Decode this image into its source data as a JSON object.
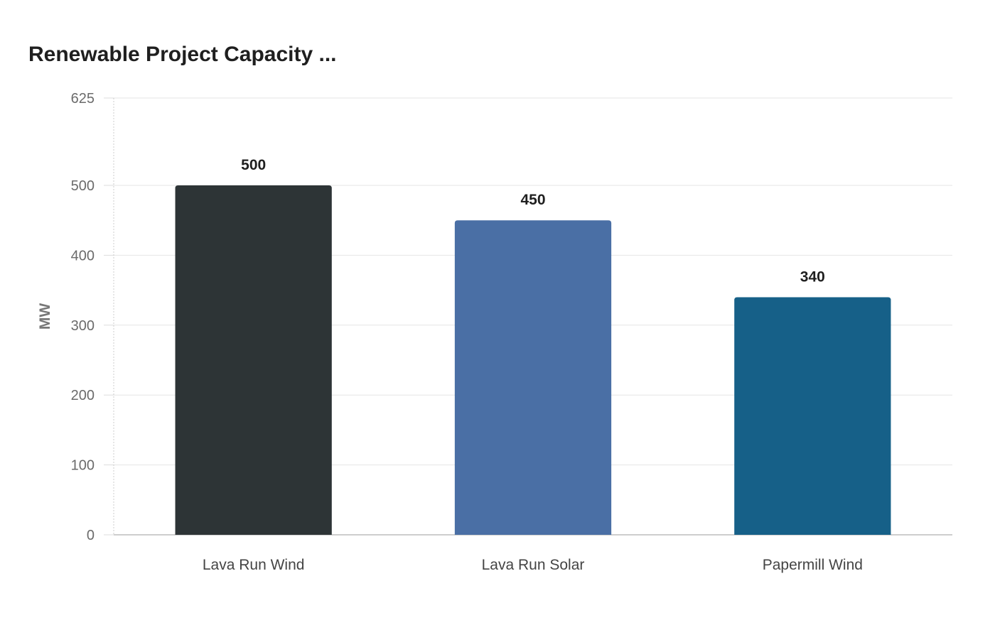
{
  "chart_data": {
    "type": "bar",
    "title": "Renewable Project Capacity ...",
    "xlabel": "",
    "ylabel": "MW",
    "categories": [
      "Lava Run Wind",
      "Lava Run Solar",
      "Papermill Wind"
    ],
    "values": [
      500,
      450,
      340
    ],
    "colors": [
      "#2d3436",
      "#4a6fa5",
      "#166088"
    ],
    "ylim": [
      0,
      625
    ],
    "yticks": [
      0,
      100,
      200,
      300,
      400,
      500,
      625
    ],
    "grid": true,
    "legend": "none"
  }
}
